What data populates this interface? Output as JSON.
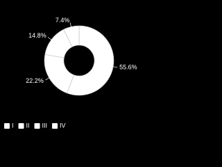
{
  "chart_data": {
    "type": "donut",
    "categories": [
      "I",
      "II",
      "III",
      "IV"
    ],
    "values": [
      55.6,
      22.2,
      14.8,
      7.4
    ],
    "value_labels": [
      "55.6%",
      "22.2%",
      "14.8%",
      "7.4%"
    ],
    "colors": [
      "#ffffff",
      "#ffffff",
      "#ffffff",
      "#ffffff"
    ],
    "legend": "bottom-left"
  }
}
